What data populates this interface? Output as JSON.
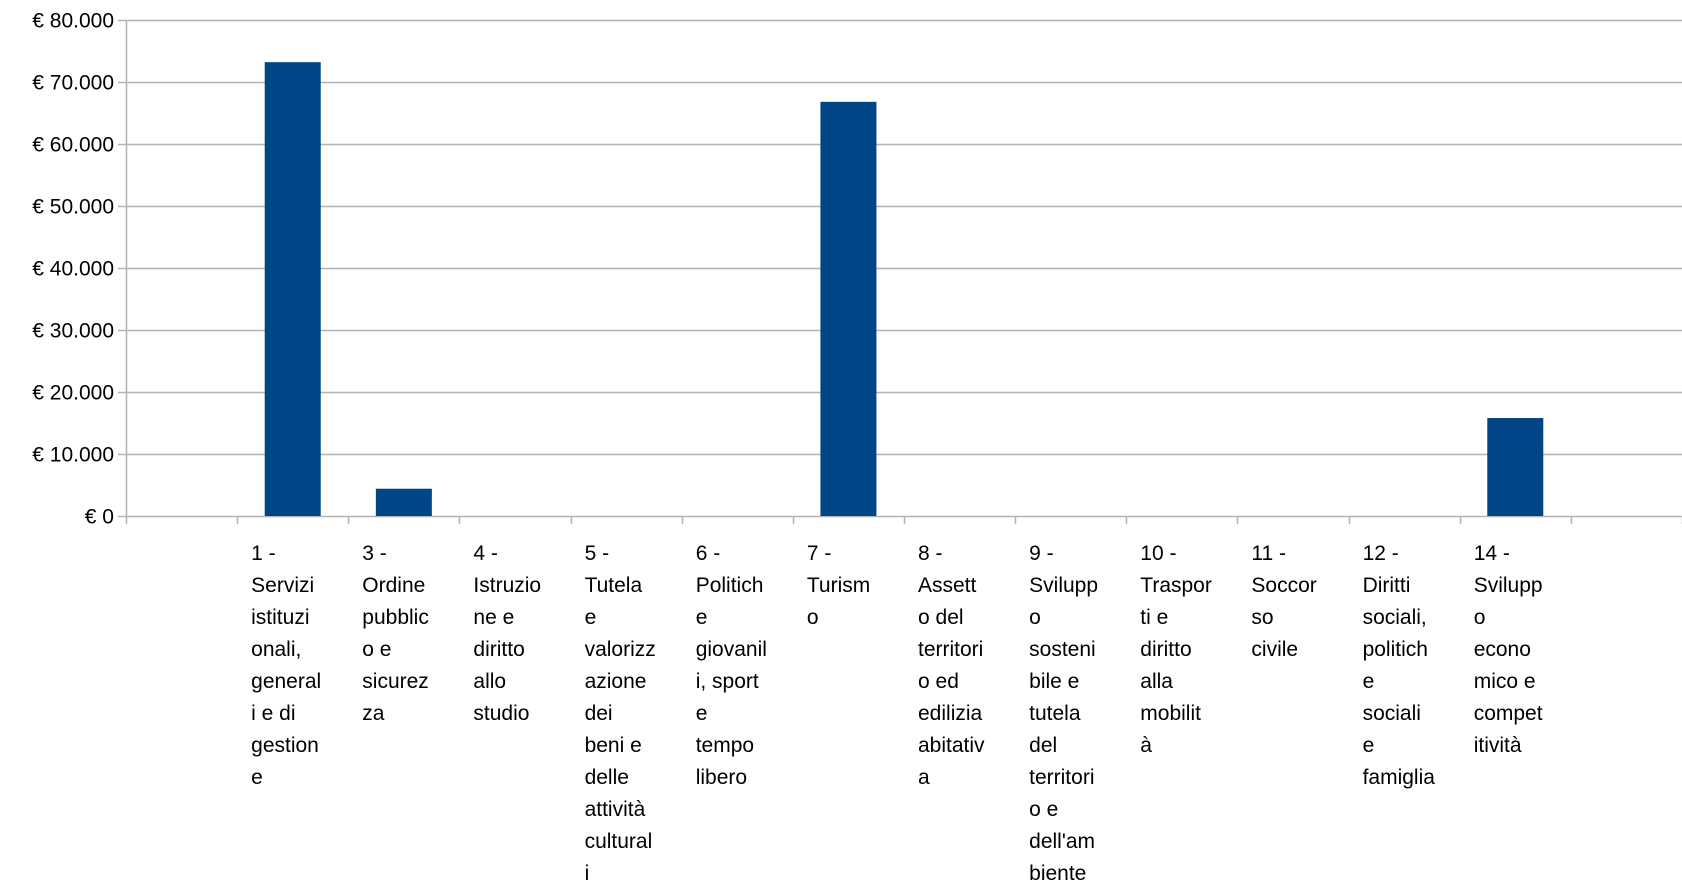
{
  "chart_data": {
    "type": "bar",
    "categories": [
      "",
      "1 - Servizi istituzionali, generali e di gestione",
      "3 - Ordine pubblico e sicurezza",
      "4 - Istruzione e diritto allo studio",
      "5 - Tutela e valorizzazione dei beni e delle attività culturali",
      "6 - Politiche giovanili, sport e tempo libero",
      "7 - Turismo",
      "8 - Assetto del territorio ed edilizia abitativa",
      "9 - Sviluppo sostenibile e tutela del territorio e dell'ambiente",
      "10 - Trasporti e diritto alla mobilità",
      "11 - Soccorso civile",
      "12 - Diritti sociali, politiche sociali e famiglia",
      "14 - Sviluppo economico e competitività",
      ""
    ],
    "category_label_lines": [
      [],
      [
        "1 -",
        "Servizi",
        "istituzi",
        "onali,",
        "general",
        "i e di",
        "gestion",
        "e"
      ],
      [
        "3 -",
        "Ordine",
        "pubblic",
        "o e",
        "sicurez",
        "za"
      ],
      [
        "4 -",
        "Istruzio",
        "ne e",
        "diritto",
        "allo",
        "studio"
      ],
      [
        "5 -",
        "Tutela",
        "e",
        "valorizz",
        "azione",
        "dei",
        "beni e",
        "delle",
        "attività",
        "cultural",
        "i"
      ],
      [
        "6 -",
        "Politich",
        "e",
        "giovanil",
        "i, sport",
        "e",
        "tempo",
        "libero"
      ],
      [
        "7 -",
        "Turism",
        "o"
      ],
      [
        "8 -",
        "Assett",
        "o del",
        "territori",
        "o ed",
        "edilizia",
        "abitativ",
        "a"
      ],
      [
        "9 -",
        "Svilupp",
        "o",
        "sosteni",
        "bile e",
        "tutela",
        "del",
        "territori",
        "o e",
        "dell'am",
        "biente"
      ],
      [
        "10 -",
        "Traspor",
        "ti e",
        "diritto",
        "alla",
        "mobilit",
        "à"
      ],
      [
        "11 -",
        "Soccor",
        "so",
        "civile"
      ],
      [
        "12 -",
        "Diritti",
        "sociali,",
        "politich",
        "e",
        "sociali",
        "e",
        "famiglia"
      ],
      [
        "14 -",
        "Svilupp",
        "o",
        "econo",
        "mico e",
        "compet",
        "itività"
      ],
      []
    ],
    "values": [
      0,
      73200,
      4400,
      0,
      0,
      0,
      66800,
      0,
      0,
      0,
      0,
      0,
      15800,
      0
    ],
    "y_tick_labels": [
      "€ 0",
      "€ 10.000",
      "€ 20.000",
      "€ 30.000",
      "€ 40.000",
      "€ 50.000",
      "€ 60.000",
      "€ 70.000",
      "€ 80.000"
    ],
    "y_ticks": [
      0,
      10000,
      20000,
      30000,
      40000,
      50000,
      60000,
      70000,
      80000
    ],
    "ylim": [
      0,
      80000
    ],
    "grid": true,
    "legend": "none",
    "title": "",
    "xlabel": "",
    "ylabel": "",
    "colors": {
      "bar": "#004586",
      "grid": "#b3b3b3",
      "axis": "#b3b3b3",
      "text": "#000000"
    }
  }
}
